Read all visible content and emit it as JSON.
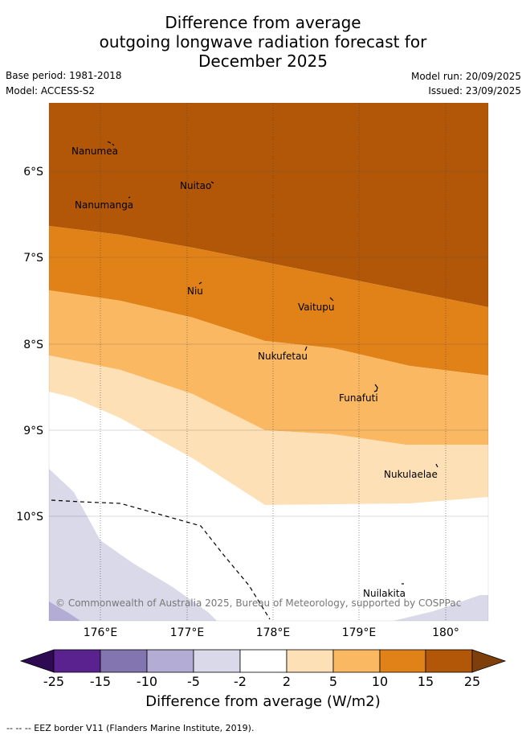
{
  "title": {
    "line1": "Difference from average",
    "line2": "outgoing longwave radiation forecast for",
    "line3": "December 2025"
  },
  "meta": {
    "base_period": "Base period: 1981-2018",
    "model": "Model: ACCESS-S2",
    "model_run": "Model run: 20/09/2025",
    "issued": "Issued: 23/09/2025"
  },
  "axes": {
    "lat_labels": [
      "6°S",
      "7°S",
      "8°S",
      "9°S",
      "10°S"
    ],
    "lon_labels": [
      "176°E",
      "177°E",
      "178°E",
      "179°E",
      "180°"
    ]
  },
  "places": [
    "Nanumea",
    "Nuitao",
    "Nanumanga",
    "Niu",
    "Vaitupu",
    "Nukufetau",
    "Funafuti",
    "Nukulaelae",
    "Nuilakita"
  ],
  "copyright": "© Commonwealth of Australia 2025, Bureau of Meteorology, supported by COSPPac",
  "colorbar": {
    "ticks": [
      "-25",
      "-15",
      "-10",
      "-5",
      "-2",
      "2",
      "5",
      "10",
      "15",
      "25"
    ],
    "colors": {
      "under": "#2d0a52",
      "b1": "#5a228e",
      "b2": "#8375af",
      "b3": "#b3acd4",
      "b4": "#d9d9ea",
      "b5": "#ffffff",
      "b6": "#fde0b6",
      "b7": "#fbb862",
      "b8": "#e08218",
      "b9": "#b25707",
      "over": "#7e3f0a"
    },
    "label": "Difference from average (W/m2)"
  },
  "footnote": "--  --  -- EEZ border V11 (Flanders Marine Institute, 2019)."
}
